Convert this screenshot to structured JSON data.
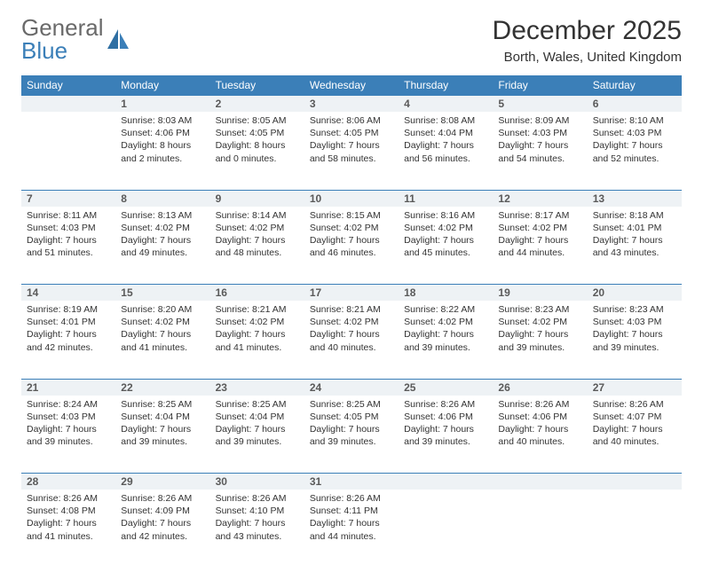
{
  "logo": {
    "part1": "General",
    "part2": "Blue"
  },
  "title": "December 2025",
  "location": "Borth, Wales, United Kingdom",
  "colors": {
    "header_bg": "#3b7fb8",
    "daynum_bg": "#eef2f5",
    "border": "#3b7fb8",
    "text": "#333333",
    "logo_gray": "#6a6a6a"
  },
  "weekdays": [
    "Sunday",
    "Monday",
    "Tuesday",
    "Wednesday",
    "Thursday",
    "Friday",
    "Saturday"
  ],
  "weeks": [
    {
      "nums": [
        "",
        "1",
        "2",
        "3",
        "4",
        "5",
        "6"
      ],
      "cells": [
        null,
        {
          "sunrise": "Sunrise: 8:03 AM",
          "sunset": "Sunset: 4:06 PM",
          "day1": "Daylight: 8 hours",
          "day2": "and 2 minutes."
        },
        {
          "sunrise": "Sunrise: 8:05 AM",
          "sunset": "Sunset: 4:05 PM",
          "day1": "Daylight: 8 hours",
          "day2": "and 0 minutes."
        },
        {
          "sunrise": "Sunrise: 8:06 AM",
          "sunset": "Sunset: 4:05 PM",
          "day1": "Daylight: 7 hours",
          "day2": "and 58 minutes."
        },
        {
          "sunrise": "Sunrise: 8:08 AM",
          "sunset": "Sunset: 4:04 PM",
          "day1": "Daylight: 7 hours",
          "day2": "and 56 minutes."
        },
        {
          "sunrise": "Sunrise: 8:09 AM",
          "sunset": "Sunset: 4:03 PM",
          "day1": "Daylight: 7 hours",
          "day2": "and 54 minutes."
        },
        {
          "sunrise": "Sunrise: 8:10 AM",
          "sunset": "Sunset: 4:03 PM",
          "day1": "Daylight: 7 hours",
          "day2": "and 52 minutes."
        }
      ]
    },
    {
      "nums": [
        "7",
        "8",
        "9",
        "10",
        "11",
        "12",
        "13"
      ],
      "cells": [
        {
          "sunrise": "Sunrise: 8:11 AM",
          "sunset": "Sunset: 4:03 PM",
          "day1": "Daylight: 7 hours",
          "day2": "and 51 minutes."
        },
        {
          "sunrise": "Sunrise: 8:13 AM",
          "sunset": "Sunset: 4:02 PM",
          "day1": "Daylight: 7 hours",
          "day2": "and 49 minutes."
        },
        {
          "sunrise": "Sunrise: 8:14 AM",
          "sunset": "Sunset: 4:02 PM",
          "day1": "Daylight: 7 hours",
          "day2": "and 48 minutes."
        },
        {
          "sunrise": "Sunrise: 8:15 AM",
          "sunset": "Sunset: 4:02 PM",
          "day1": "Daylight: 7 hours",
          "day2": "and 46 minutes."
        },
        {
          "sunrise": "Sunrise: 8:16 AM",
          "sunset": "Sunset: 4:02 PM",
          "day1": "Daylight: 7 hours",
          "day2": "and 45 minutes."
        },
        {
          "sunrise": "Sunrise: 8:17 AM",
          "sunset": "Sunset: 4:02 PM",
          "day1": "Daylight: 7 hours",
          "day2": "and 44 minutes."
        },
        {
          "sunrise": "Sunrise: 8:18 AM",
          "sunset": "Sunset: 4:01 PM",
          "day1": "Daylight: 7 hours",
          "day2": "and 43 minutes."
        }
      ]
    },
    {
      "nums": [
        "14",
        "15",
        "16",
        "17",
        "18",
        "19",
        "20"
      ],
      "cells": [
        {
          "sunrise": "Sunrise: 8:19 AM",
          "sunset": "Sunset: 4:01 PM",
          "day1": "Daylight: 7 hours",
          "day2": "and 42 minutes."
        },
        {
          "sunrise": "Sunrise: 8:20 AM",
          "sunset": "Sunset: 4:02 PM",
          "day1": "Daylight: 7 hours",
          "day2": "and 41 minutes."
        },
        {
          "sunrise": "Sunrise: 8:21 AM",
          "sunset": "Sunset: 4:02 PM",
          "day1": "Daylight: 7 hours",
          "day2": "and 41 minutes."
        },
        {
          "sunrise": "Sunrise: 8:21 AM",
          "sunset": "Sunset: 4:02 PM",
          "day1": "Daylight: 7 hours",
          "day2": "and 40 minutes."
        },
        {
          "sunrise": "Sunrise: 8:22 AM",
          "sunset": "Sunset: 4:02 PM",
          "day1": "Daylight: 7 hours",
          "day2": "and 39 minutes."
        },
        {
          "sunrise": "Sunrise: 8:23 AM",
          "sunset": "Sunset: 4:02 PM",
          "day1": "Daylight: 7 hours",
          "day2": "and 39 minutes."
        },
        {
          "sunrise": "Sunrise: 8:23 AM",
          "sunset": "Sunset: 4:03 PM",
          "day1": "Daylight: 7 hours",
          "day2": "and 39 minutes."
        }
      ]
    },
    {
      "nums": [
        "21",
        "22",
        "23",
        "24",
        "25",
        "26",
        "27"
      ],
      "cells": [
        {
          "sunrise": "Sunrise: 8:24 AM",
          "sunset": "Sunset: 4:03 PM",
          "day1": "Daylight: 7 hours",
          "day2": "and 39 minutes."
        },
        {
          "sunrise": "Sunrise: 8:25 AM",
          "sunset": "Sunset: 4:04 PM",
          "day1": "Daylight: 7 hours",
          "day2": "and 39 minutes."
        },
        {
          "sunrise": "Sunrise: 8:25 AM",
          "sunset": "Sunset: 4:04 PM",
          "day1": "Daylight: 7 hours",
          "day2": "and 39 minutes."
        },
        {
          "sunrise": "Sunrise: 8:25 AM",
          "sunset": "Sunset: 4:05 PM",
          "day1": "Daylight: 7 hours",
          "day2": "and 39 minutes."
        },
        {
          "sunrise": "Sunrise: 8:26 AM",
          "sunset": "Sunset: 4:06 PM",
          "day1": "Daylight: 7 hours",
          "day2": "and 39 minutes."
        },
        {
          "sunrise": "Sunrise: 8:26 AM",
          "sunset": "Sunset: 4:06 PM",
          "day1": "Daylight: 7 hours",
          "day2": "and 40 minutes."
        },
        {
          "sunrise": "Sunrise: 8:26 AM",
          "sunset": "Sunset: 4:07 PM",
          "day1": "Daylight: 7 hours",
          "day2": "and 40 minutes."
        }
      ]
    },
    {
      "nums": [
        "28",
        "29",
        "30",
        "31",
        "",
        "",
        ""
      ],
      "cells": [
        {
          "sunrise": "Sunrise: 8:26 AM",
          "sunset": "Sunset: 4:08 PM",
          "day1": "Daylight: 7 hours",
          "day2": "and 41 minutes."
        },
        {
          "sunrise": "Sunrise: 8:26 AM",
          "sunset": "Sunset: 4:09 PM",
          "day1": "Daylight: 7 hours",
          "day2": "and 42 minutes."
        },
        {
          "sunrise": "Sunrise: 8:26 AM",
          "sunset": "Sunset: 4:10 PM",
          "day1": "Daylight: 7 hours",
          "day2": "and 43 minutes."
        },
        {
          "sunrise": "Sunrise: 8:26 AM",
          "sunset": "Sunset: 4:11 PM",
          "day1": "Daylight: 7 hours",
          "day2": "and 44 minutes."
        },
        null,
        null,
        null
      ]
    }
  ]
}
